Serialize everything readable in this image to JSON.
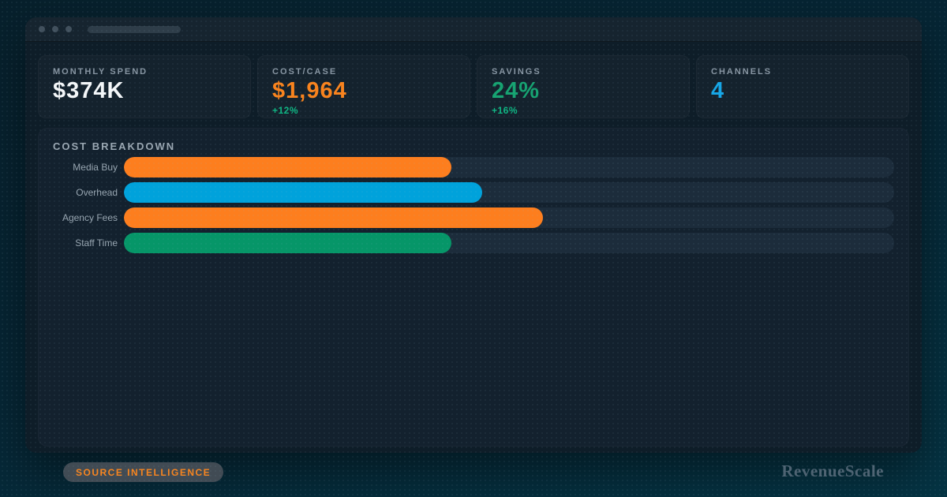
{
  "chrome": {
    "window_controls": [
      "close",
      "minimize",
      "maximize"
    ]
  },
  "cards": [
    {
      "label": "MONTHLY SPEND",
      "value": "$374K",
      "value_color": "#f4f7f9",
      "delta": ""
    },
    {
      "label": "COST/CASE",
      "value": "$1,964",
      "value_color": "#f9831d",
      "delta": "+12%"
    },
    {
      "label": "SAVINGS",
      "value": "24%",
      "value_color": "#16a371",
      "delta": "+16%"
    },
    {
      "label": "CHANNELS",
      "value": "4",
      "value_color": "#16a6e6",
      "delta": ""
    }
  ],
  "chart_data": {
    "type": "bar",
    "orientation": "horizontal",
    "title": "COST BREAKDOWN",
    "categories": [
      "Media Buy",
      "Overhead",
      "Agency Fees",
      "Staff Time"
    ],
    "values_pct": [
      42.5,
      46.5,
      54.4,
      42.5
    ],
    "bar_colors": [
      "#fd7e1e",
      "#00a2db",
      "#fd7e1e",
      "#069668"
    ],
    "track_color": "#1c2c3b",
    "grid": false,
    "legend": false
  },
  "footer": {
    "badge": "SOURCE INTELLIGENCE",
    "brand": "RevenueScale"
  },
  "colors": {
    "background_top": "#07202c",
    "background_bottom": "#053444",
    "window_bg": "#0e1d28",
    "card_bg": "#14222d",
    "panel_bg": "#13212e",
    "accent_orange": "#f9831d",
    "accent_green": "#16a371",
    "accent_blue": "#16a6e6",
    "delta_green": "#0fb583"
  }
}
